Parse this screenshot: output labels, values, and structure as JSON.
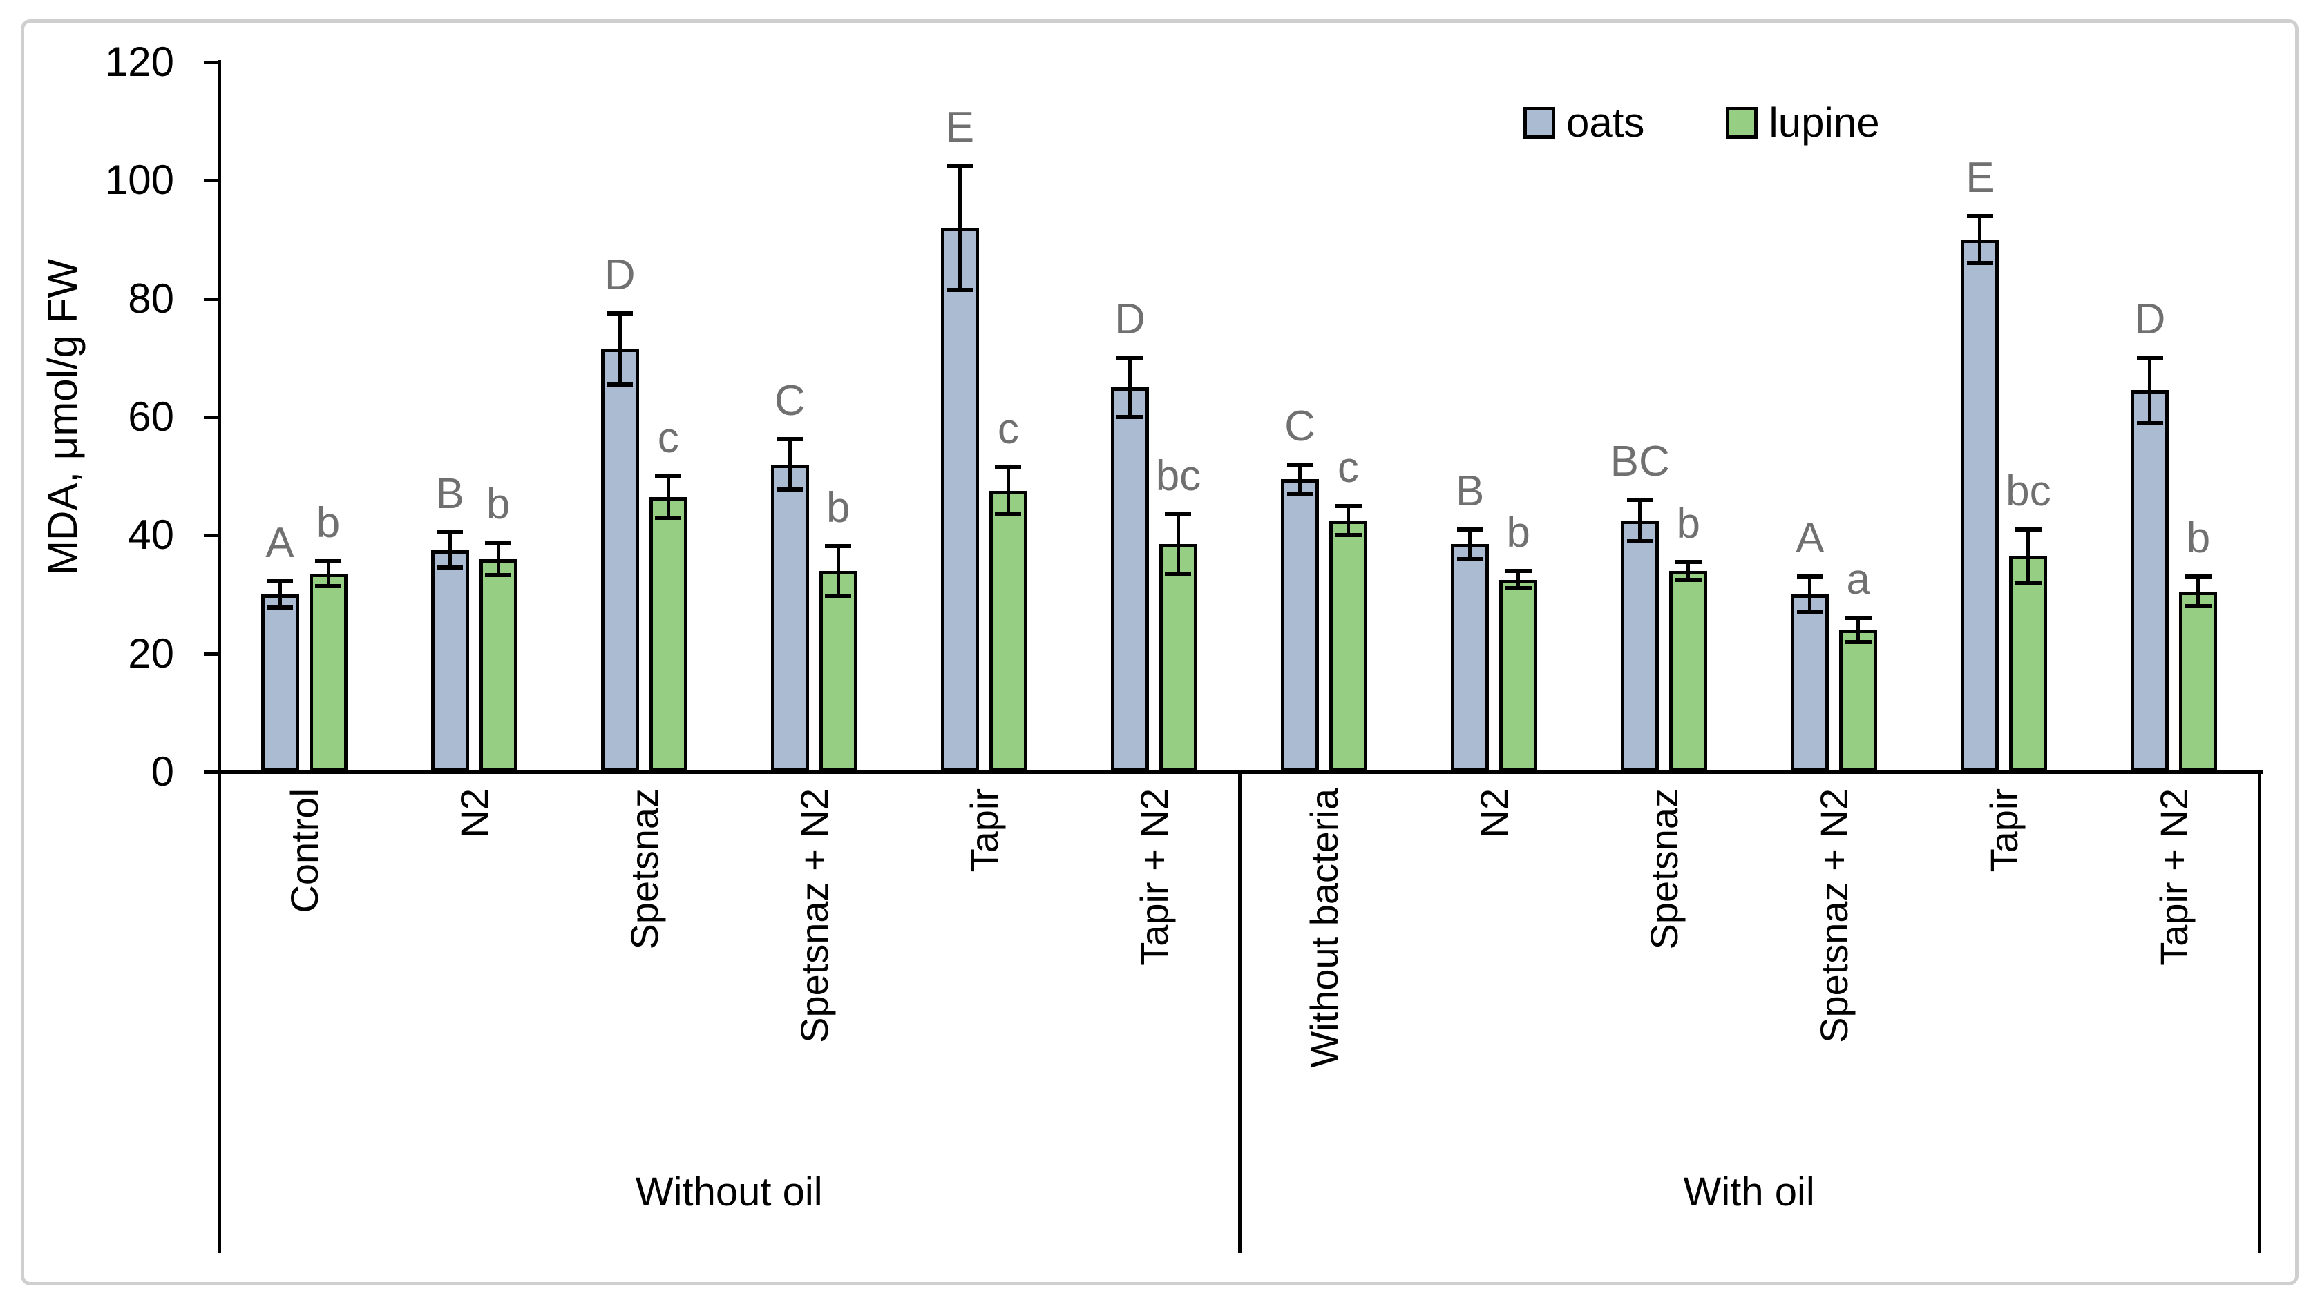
{
  "chart_data": {
    "type": "bar",
    "title": "",
    "xlabel": "",
    "ylabel": "MDA, μmol/g FW",
    "ylim": [
      0,
      120
    ],
    "yticks": [
      0,
      20,
      40,
      60,
      80,
      100,
      120
    ],
    "grid": false,
    "legend_position": "top-right",
    "error_bars": true,
    "groups": [
      {
        "label": "Without oil",
        "categories": [
          "Control",
          "N2",
          "Spetsnaz",
          "Spetsnaz + N2",
          "Tapir",
          "Tapir + N2"
        ]
      },
      {
        "label": "With oil",
        "categories": [
          "Without bacteria",
          "N2",
          "Spetsnaz",
          "Spetsnaz + N2",
          "Tapir",
          "Tapir + N2"
        ]
      }
    ],
    "categories_flat": [
      "Control",
      "N2",
      "Spetsnaz",
      "Spetsnaz + N2",
      "Tapir",
      "Tapir + N2",
      "Without bacteria",
      "N2",
      "Spetsnaz",
      "Spetsnaz + N2",
      "Tapir",
      "Tapir + N2"
    ],
    "series": [
      {
        "name": "oats",
        "color": "#ABBCD2",
        "values": [
          30,
          37.5,
          71.5,
          52,
          92,
          65,
          49.5,
          38.5,
          42.5,
          30,
          90,
          64.5
        ],
        "errors": [
          2.2,
          3,
          6,
          4.3,
          10.5,
          5,
          2.5,
          2.5,
          3.5,
          3,
          4,
          5.5
        ],
        "letters": [
          "A",
          "B",
          "D",
          "C",
          "E",
          "D",
          "C",
          "B",
          "BC",
          "A",
          "E",
          "D"
        ]
      },
      {
        "name": "lupine",
        "color": "#96CE84",
        "values": [
          33.5,
          36,
          46.5,
          34,
          47.5,
          38.5,
          42.5,
          32.5,
          34,
          24,
          36.5,
          30.5
        ],
        "errors": [
          2.1,
          2.7,
          3.5,
          4.2,
          4,
          5,
          2.5,
          1.5,
          1.5,
          2,
          4.5,
          2.5
        ],
        "letters": [
          "b",
          "b",
          "c",
          "b",
          "c",
          "bc",
          "c",
          "b",
          "b",
          "a",
          "bc",
          "b"
        ]
      }
    ],
    "letter_color": "#707070"
  }
}
